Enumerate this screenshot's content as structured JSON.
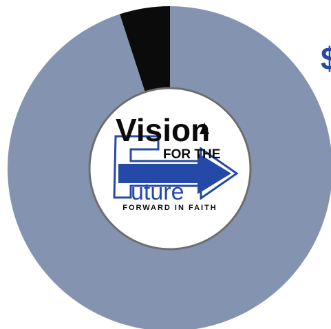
{
  "chart_data": {
    "type": "pie",
    "donut": true,
    "slices": [
      {
        "value": 95,
        "color": "#8494b0"
      },
      {
        "value": 5,
        "color": "#0b0b0b"
      }
    ]
  },
  "logo": {
    "line1": "Vision",
    "line2": "FOR THE",
    "line3": "uture",
    "tagline": "FORWARD IN FAITH"
  },
  "edge_glyph": "$",
  "colors": {
    "brand_blue": "#2449a6",
    "ink": "#0b0b0b",
    "ring": "#6e6e6e"
  }
}
